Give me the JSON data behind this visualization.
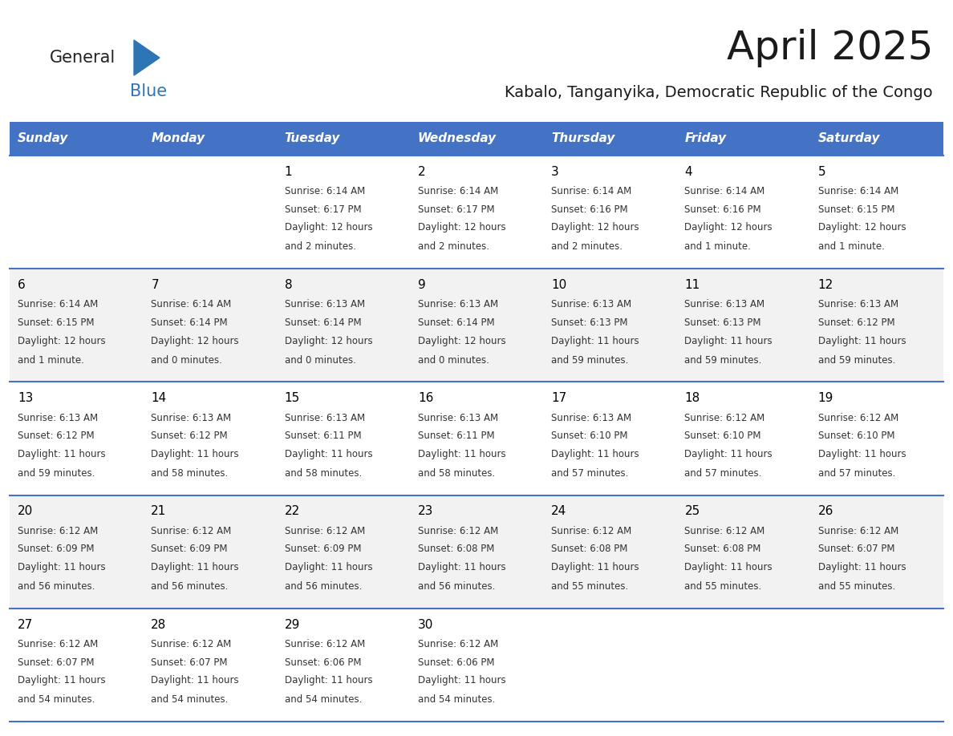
{
  "title": "April 2025",
  "subtitle": "Kabalo, Tanganyika, Democratic Republic of the Congo",
  "days_of_week": [
    "Sunday",
    "Monday",
    "Tuesday",
    "Wednesday",
    "Thursday",
    "Friday",
    "Saturday"
  ],
  "header_bg": "#4472C4",
  "header_text": "#FFFFFF",
  "row_bg_odd": "#FFFFFF",
  "row_bg_even": "#F2F2F2",
  "separator_color": "#4472C4",
  "calendar": [
    [
      {
        "day": "",
        "sunrise": "",
        "sunset": "",
        "daylight": ""
      },
      {
        "day": "",
        "sunrise": "",
        "sunset": "",
        "daylight": ""
      },
      {
        "day": "1",
        "sunrise": "6:14 AM",
        "sunset": "6:17 PM",
        "daylight": "12 hours\nand 2 minutes."
      },
      {
        "day": "2",
        "sunrise": "6:14 AM",
        "sunset": "6:17 PM",
        "daylight": "12 hours\nand 2 minutes."
      },
      {
        "day": "3",
        "sunrise": "6:14 AM",
        "sunset": "6:16 PM",
        "daylight": "12 hours\nand 2 minutes."
      },
      {
        "day": "4",
        "sunrise": "6:14 AM",
        "sunset": "6:16 PM",
        "daylight": "12 hours\nand 1 minute."
      },
      {
        "day": "5",
        "sunrise": "6:14 AM",
        "sunset": "6:15 PM",
        "daylight": "12 hours\nand 1 minute."
      }
    ],
    [
      {
        "day": "6",
        "sunrise": "6:14 AM",
        "sunset": "6:15 PM",
        "daylight": "12 hours\nand 1 minute."
      },
      {
        "day": "7",
        "sunrise": "6:14 AM",
        "sunset": "6:14 PM",
        "daylight": "12 hours\nand 0 minutes."
      },
      {
        "day": "8",
        "sunrise": "6:13 AM",
        "sunset": "6:14 PM",
        "daylight": "12 hours\nand 0 minutes."
      },
      {
        "day": "9",
        "sunrise": "6:13 AM",
        "sunset": "6:14 PM",
        "daylight": "12 hours\nand 0 minutes."
      },
      {
        "day": "10",
        "sunrise": "6:13 AM",
        "sunset": "6:13 PM",
        "daylight": "11 hours\nand 59 minutes."
      },
      {
        "day": "11",
        "sunrise": "6:13 AM",
        "sunset": "6:13 PM",
        "daylight": "11 hours\nand 59 minutes."
      },
      {
        "day": "12",
        "sunrise": "6:13 AM",
        "sunset": "6:12 PM",
        "daylight": "11 hours\nand 59 minutes."
      }
    ],
    [
      {
        "day": "13",
        "sunrise": "6:13 AM",
        "sunset": "6:12 PM",
        "daylight": "11 hours\nand 59 minutes."
      },
      {
        "day": "14",
        "sunrise": "6:13 AM",
        "sunset": "6:12 PM",
        "daylight": "11 hours\nand 58 minutes."
      },
      {
        "day": "15",
        "sunrise": "6:13 AM",
        "sunset": "6:11 PM",
        "daylight": "11 hours\nand 58 minutes."
      },
      {
        "day": "16",
        "sunrise": "6:13 AM",
        "sunset": "6:11 PM",
        "daylight": "11 hours\nand 58 minutes."
      },
      {
        "day": "17",
        "sunrise": "6:13 AM",
        "sunset": "6:10 PM",
        "daylight": "11 hours\nand 57 minutes."
      },
      {
        "day": "18",
        "sunrise": "6:12 AM",
        "sunset": "6:10 PM",
        "daylight": "11 hours\nand 57 minutes."
      },
      {
        "day": "19",
        "sunrise": "6:12 AM",
        "sunset": "6:10 PM",
        "daylight": "11 hours\nand 57 minutes."
      }
    ],
    [
      {
        "day": "20",
        "sunrise": "6:12 AM",
        "sunset": "6:09 PM",
        "daylight": "11 hours\nand 56 minutes."
      },
      {
        "day": "21",
        "sunrise": "6:12 AM",
        "sunset": "6:09 PM",
        "daylight": "11 hours\nand 56 minutes."
      },
      {
        "day": "22",
        "sunrise": "6:12 AM",
        "sunset": "6:09 PM",
        "daylight": "11 hours\nand 56 minutes."
      },
      {
        "day": "23",
        "sunrise": "6:12 AM",
        "sunset": "6:08 PM",
        "daylight": "11 hours\nand 56 minutes."
      },
      {
        "day": "24",
        "sunrise": "6:12 AM",
        "sunset": "6:08 PM",
        "daylight": "11 hours\nand 55 minutes."
      },
      {
        "day": "25",
        "sunrise": "6:12 AM",
        "sunset": "6:08 PM",
        "daylight": "11 hours\nand 55 minutes."
      },
      {
        "day": "26",
        "sunrise": "6:12 AM",
        "sunset": "6:07 PM",
        "daylight": "11 hours\nand 55 minutes."
      }
    ],
    [
      {
        "day": "27",
        "sunrise": "6:12 AM",
        "sunset": "6:07 PM",
        "daylight": "11 hours\nand 54 minutes."
      },
      {
        "day": "28",
        "sunrise": "6:12 AM",
        "sunset": "6:07 PM",
        "daylight": "11 hours\nand 54 minutes."
      },
      {
        "day": "29",
        "sunrise": "6:12 AM",
        "sunset": "6:06 PM",
        "daylight": "11 hours\nand 54 minutes."
      },
      {
        "day": "30",
        "sunrise": "6:12 AM",
        "sunset": "6:06 PM",
        "daylight": "11 hours\nand 54 minutes."
      },
      {
        "day": "",
        "sunrise": "",
        "sunset": "",
        "daylight": ""
      },
      {
        "day": "",
        "sunrise": "",
        "sunset": "",
        "daylight": ""
      },
      {
        "day": "",
        "sunrise": "",
        "sunset": "",
        "daylight": ""
      }
    ]
  ],
  "logo_general_color": "#222222",
  "logo_blue_color": "#2E75B6",
  "logo_triangle_color": "#2E75B6",
  "title_fontsize": 36,
  "subtitle_fontsize": 14,
  "header_fontsize": 11,
  "day_number_fontsize": 11,
  "cell_fontsize": 8.5
}
